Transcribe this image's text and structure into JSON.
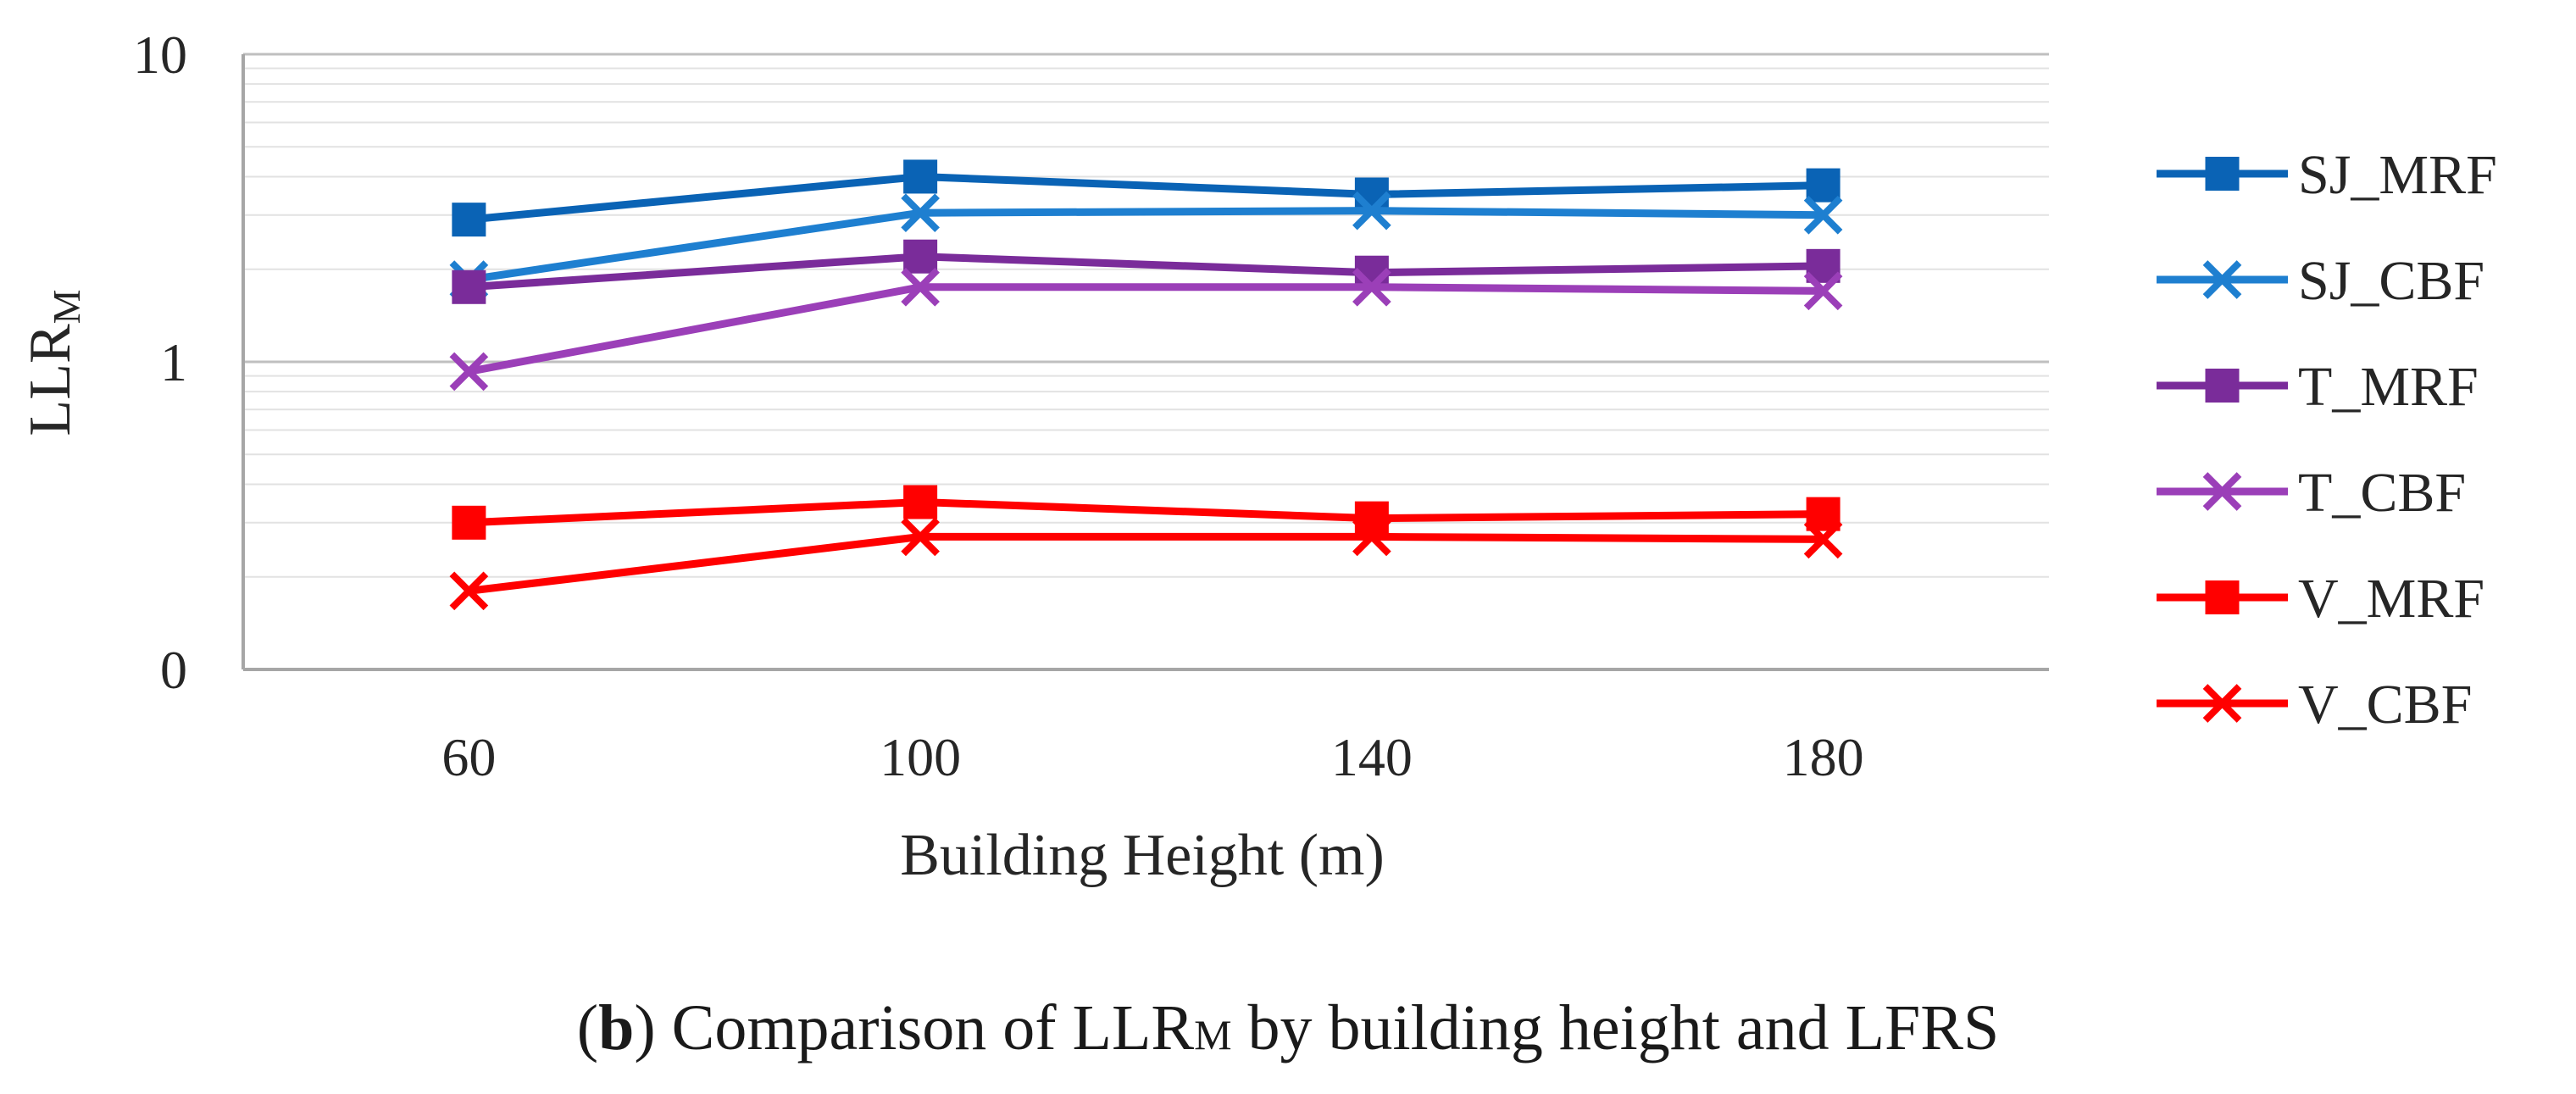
{
  "chart_data": {
    "type": "line",
    "yscale": "log",
    "x": [
      60,
      100,
      140,
      180
    ],
    "categories": [
      "60",
      "100",
      "140",
      "180"
    ],
    "xlabel": "Building Height (m)",
    "ylabel": {
      "main": "LLR",
      "sub": "M"
    },
    "y_ticks": [
      {
        "value": 10,
        "label": "10"
      },
      {
        "value": 1,
        "label": "1"
      },
      {
        "value": 0.1,
        "label": "0"
      }
    ],
    "ylim": [
      0.1,
      10
    ],
    "grid": true,
    "legend_position": "right",
    "series": [
      {
        "name": "SJ_MRF",
        "marker": "square",
        "color": "#0A63B5",
        "values": [
          2.9,
          4.0,
          3.5,
          3.75
        ]
      },
      {
        "name": "SJ_CBF",
        "marker": "x",
        "color": "#1E7FD0",
        "values": [
          1.85,
          3.05,
          3.1,
          3.0
        ]
      },
      {
        "name": "T_MRF",
        "marker": "square",
        "color": "#7A2C9A",
        "values": [
          1.75,
          2.2,
          1.95,
          2.05
        ]
      },
      {
        "name": "T_CBF",
        "marker": "x",
        "color": "#9B3FB8",
        "values": [
          0.93,
          1.75,
          1.75,
          1.7
        ]
      },
      {
        "name": "V_MRF",
        "marker": "square",
        "color": "#FF0000",
        "values": [
          0.3,
          0.35,
          0.31,
          0.32
        ]
      },
      {
        "name": "V_CBF",
        "marker": "x",
        "color": "#FF0000",
        "values": [
          0.18,
          0.27,
          0.27,
          0.265
        ]
      }
    ]
  },
  "caption": {
    "open_paren": "(",
    "bold_letter": "b",
    "text_before": ") Comparison of LLR",
    "sub": "M",
    "text_after": " by building height and LFRS"
  }
}
